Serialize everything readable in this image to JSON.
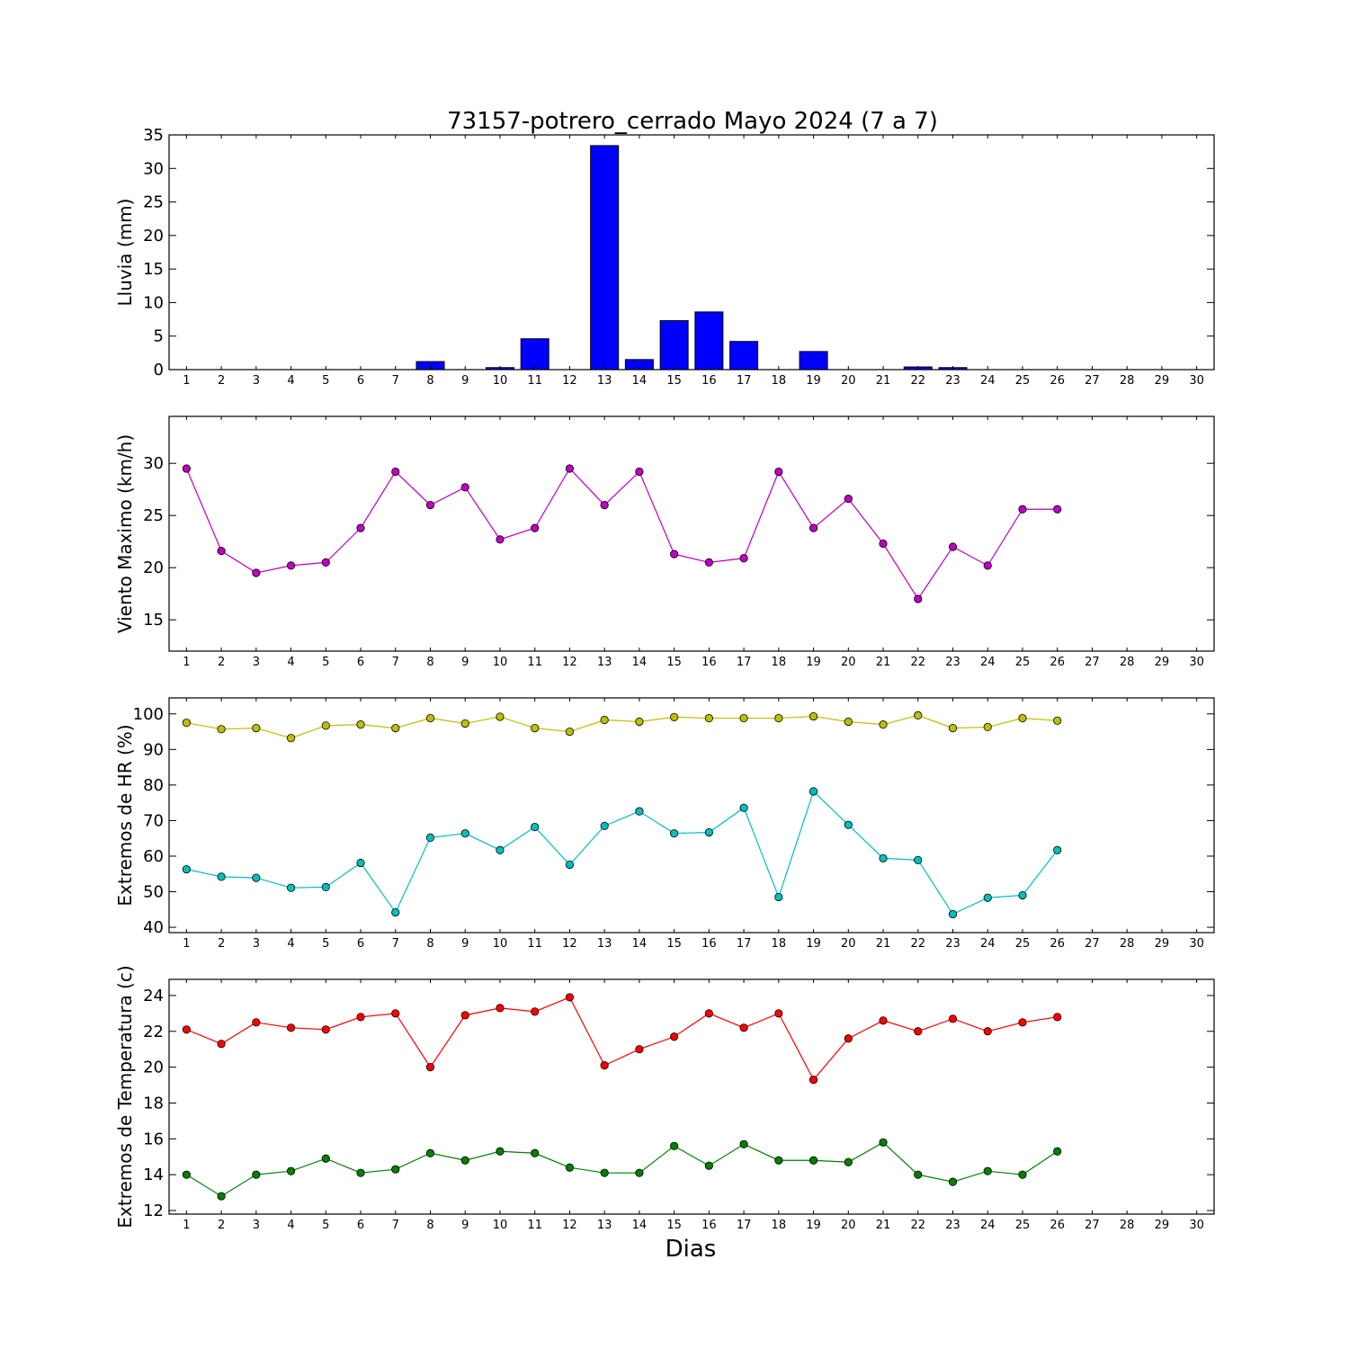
{
  "figure": {
    "title": "73157-potrero_cerrado Mayo 2024  (7 a 7)",
    "xlabel": "Dias"
  },
  "chart_data": [
    {
      "type": "bar",
      "ylabel": "Lluvia (mm)",
      "xlim": [
        0.5,
        30.5
      ],
      "ylim": [
        0,
        35
      ],
      "yticks": [
        0,
        5,
        10,
        15,
        20,
        25,
        30,
        35
      ],
      "categories": [
        1,
        2,
        3,
        4,
        5,
        6,
        7,
        8,
        9,
        10,
        11,
        12,
        13,
        14,
        15,
        16,
        17,
        18,
        19,
        20,
        21,
        22,
        23,
        24,
        25,
        26,
        27,
        28,
        29,
        30
      ],
      "series": [
        {
          "color": "#0000ff",
          "values": [
            0,
            0,
            0,
            0,
            0,
            0,
            0,
            1.2,
            0,
            0.3,
            4.6,
            0,
            33.4,
            1.5,
            7.3,
            8.6,
            4.2,
            0,
            2.7,
            0,
            0,
            0.4,
            0.3,
            0,
            0,
            0,
            0,
            0,
            0,
            0
          ]
        }
      ]
    },
    {
      "type": "line",
      "ylabel": "Viento Maximo (km/h)",
      "xlim": [
        0.5,
        30.5
      ],
      "ylim": [
        12,
        34.5
      ],
      "yticks": [
        15,
        20,
        25,
        30
      ],
      "categories": [
        1,
        2,
        3,
        4,
        5,
        6,
        7,
        8,
        9,
        10,
        11,
        12,
        13,
        14,
        15,
        16,
        17,
        18,
        19,
        20,
        21,
        22,
        23,
        24,
        25,
        26,
        27,
        28,
        29,
        30
      ],
      "series": [
        {
          "color": "#bf00bf",
          "x": [
            1,
            2,
            3,
            4,
            5,
            6,
            7,
            8,
            9,
            10,
            11,
            12,
            13,
            14,
            15,
            16,
            17,
            18,
            19,
            20,
            21,
            22,
            23,
            24,
            25,
            26
          ],
          "values": [
            29.5,
            21.6,
            19.5,
            20.2,
            20.5,
            23.8,
            29.2,
            26,
            27.7,
            22.7,
            23.8,
            29.5,
            26,
            29.2,
            21.3,
            20.5,
            20.9,
            29.2,
            23.8,
            26.6,
            22.3,
            17,
            22,
            20.2,
            25.6,
            25.6
          ]
        }
      ]
    },
    {
      "type": "line",
      "ylabel": "Extremos de HR (%)",
      "xlim": [
        0.5,
        30.5
      ],
      "ylim": [
        38.5,
        104.5
      ],
      "yticks": [
        40,
        50,
        60,
        70,
        80,
        90,
        100
      ],
      "categories": [
        1,
        2,
        3,
        4,
        5,
        6,
        7,
        8,
        9,
        10,
        11,
        12,
        13,
        14,
        15,
        16,
        17,
        18,
        19,
        20,
        21,
        22,
        23,
        24,
        25,
        26,
        27,
        28,
        29,
        30
      ],
      "series": [
        {
          "color": "#bfbf00",
          "x": [
            1,
            2,
            3,
            4,
            5,
            6,
            7,
            8,
            9,
            10,
            11,
            12,
            13,
            14,
            15,
            16,
            17,
            18,
            19,
            20,
            21,
            22,
            23,
            24,
            25,
            26
          ],
          "values": [
            97.5,
            95.7,
            96,
            93.2,
            96.7,
            97,
            96,
            98.8,
            97.3,
            99.2,
            96,
            95,
            98.3,
            97.8,
            99.1,
            98.8,
            98.8,
            98.8,
            99.3,
            97.8,
            97,
            99.6,
            96,
            96.3,
            98.8,
            98.1
          ]
        },
        {
          "color": "#00bfbf",
          "x": [
            1,
            2,
            3,
            4,
            5,
            6,
            7,
            8,
            9,
            10,
            11,
            12,
            13,
            14,
            15,
            16,
            17,
            18,
            19,
            20,
            21,
            22,
            23,
            24,
            25,
            26
          ],
          "values": [
            56.3,
            54.2,
            53.9,
            51.1,
            51.3,
            58.1,
            44.2,
            65.2,
            66.4,
            61.7,
            68.2,
            57.6,
            68.5,
            72.6,
            66.4,
            66.7,
            73.6,
            48.5,
            78.2,
            68.8,
            59.4,
            58.9,
            43.7,
            48.3,
            49,
            61.7
          ]
        }
      ]
    },
    {
      "type": "line",
      "ylabel": "Extremos de Temperatura (c)",
      "xlim": [
        0.5,
        30.5
      ],
      "ylim": [
        11.8,
        24.9
      ],
      "yticks": [
        12,
        14,
        16,
        18,
        20,
        22,
        24
      ],
      "categories": [
        1,
        2,
        3,
        4,
        5,
        6,
        7,
        8,
        9,
        10,
        11,
        12,
        13,
        14,
        15,
        16,
        17,
        18,
        19,
        20,
        21,
        22,
        23,
        24,
        25,
        26,
        27,
        28,
        29,
        30
      ],
      "series": [
        {
          "color": "#ff0000",
          "x": [
            1,
            2,
            3,
            4,
            5,
            6,
            7,
            8,
            9,
            10,
            11,
            12,
            13,
            14,
            15,
            16,
            17,
            18,
            19,
            20,
            21,
            22,
            23,
            24,
            25,
            26
          ],
          "values": [
            22.1,
            21.3,
            22.5,
            22.2,
            22.1,
            22.8,
            23,
            20,
            22.9,
            23.3,
            23.1,
            23.9,
            20.1,
            21,
            21.7,
            23,
            22.2,
            23,
            19.3,
            21.6,
            22.6,
            22,
            22.7,
            22,
            22.5,
            22.8
          ]
        },
        {
          "color": "#008000",
          "x": [
            1,
            2,
            3,
            4,
            5,
            6,
            7,
            8,
            9,
            10,
            11,
            12,
            13,
            14,
            15,
            16,
            17,
            18,
            19,
            20,
            21,
            22,
            23,
            24,
            25,
            26
          ],
          "values": [
            14,
            12.8,
            14,
            14.2,
            14.9,
            14.1,
            14.3,
            15.2,
            14.8,
            15.3,
            15.2,
            14.4,
            14.1,
            14.1,
            15.6,
            14.5,
            15.7,
            14.8,
            14.8,
            14.7,
            15.8,
            14,
            13.6,
            14.2,
            14,
            15.3
          ]
        }
      ]
    }
  ]
}
